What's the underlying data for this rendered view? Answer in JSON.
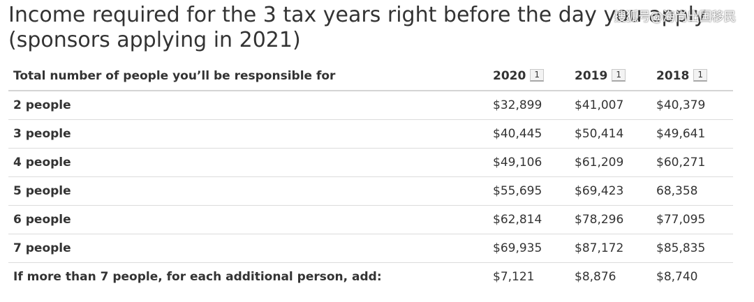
{
  "title": "Income required for the 3 tax years right before the day you apply (sponsors applying in 2021)",
  "watermark": "搜狐号@海尚出国移民",
  "table": {
    "header": {
      "label": "Total number of people you’ll be responsible for",
      "years": [
        {
          "year": "2020",
          "footnote": "1"
        },
        {
          "year": "2019",
          "footnote": "1"
        },
        {
          "year": "2018",
          "footnote": "1"
        }
      ]
    },
    "rows": [
      {
        "label": "2 people",
        "values": [
          "$32,899",
          "$41,007",
          "$40,379"
        ]
      },
      {
        "label": "3 people",
        "values": [
          "$40,445",
          "$50,414",
          "$49,641"
        ]
      },
      {
        "label": "4 people",
        "values": [
          "$49,106",
          "$61,209",
          "$60,271"
        ]
      },
      {
        "label": "5 people",
        "values": [
          "$55,695",
          "$69,423",
          "68,358"
        ]
      },
      {
        "label": "6 people",
        "values": [
          "$62,814",
          "$78,296",
          "$77,095"
        ]
      },
      {
        "label": "7 people",
        "values": [
          "$69,935",
          "$87,172",
          "$85,835"
        ]
      },
      {
        "label": "If more than 7 people, for each additional person, add:",
        "values": [
          "$7,121",
          "$8,876",
          "$8,740"
        ]
      }
    ]
  }
}
